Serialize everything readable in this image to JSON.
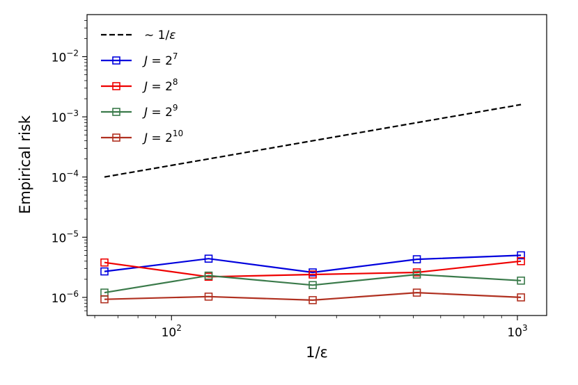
{
  "chart_data": {
    "type": "line",
    "x_scale": "log",
    "y_scale": "log",
    "xlabel": "1/ε",
    "ylabel": "Empirical risk",
    "xlim": [
      57,
      1215
    ],
    "ylim": [
      5e-07,
      0.05
    ],
    "x_ticks": [
      {
        "value": 100,
        "base": "10",
        "exp": "2"
      },
      {
        "value": 1000,
        "base": "10",
        "exp": "3"
      }
    ],
    "y_ticks": [
      {
        "value": 1e-06,
        "base": "10",
        "exp": "−6"
      },
      {
        "value": 1e-05,
        "base": "10",
        "exp": "−5"
      },
      {
        "value": 0.0001,
        "base": "10",
        "exp": "−4"
      },
      {
        "value": 0.001,
        "base": "10",
        "exp": "−3"
      },
      {
        "value": 0.01,
        "base": "10",
        "exp": "−2"
      }
    ],
    "x": [
      64,
      128,
      256,
      512,
      1024
    ],
    "series": [
      {
        "name": "∼ 1/ε",
        "label_prefix": "∼ 1/",
        "label_var": "ε",
        "label_sup": "",
        "color": "#000000",
        "dashed": true,
        "marker": false,
        "values": [
          0.0001,
          0.0002,
          0.0004,
          0.0008,
          0.0016
        ]
      },
      {
        "name": "J = 2^7",
        "label_prefix": "J = 2",
        "label_var": "",
        "label_sup": "7",
        "color": "#0000dd",
        "dashed": false,
        "marker": true,
        "values": [
          2.7e-06,
          4.4e-06,
          2.6e-06,
          4.3e-06,
          5e-06
        ]
      },
      {
        "name": "J = 2^8",
        "label_prefix": "J = 2",
        "label_var": "",
        "label_sup": "8",
        "color": "#ee0000",
        "dashed": false,
        "marker": true,
        "values": [
          3.8e-06,
          2.2e-06,
          2.4e-06,
          2.6e-06,
          4e-06
        ]
      },
      {
        "name": "J = 2^9",
        "label_prefix": "J = 2",
        "label_var": "",
        "label_sup": "9",
        "color": "#3a7a4a",
        "dashed": false,
        "marker": true,
        "values": [
          1.2e-06,
          2.3e-06,
          1.6e-06,
          2.4e-06,
          1.9e-06
        ]
      },
      {
        "name": "J = 2^10",
        "label_prefix": "J = 2",
        "label_var": "",
        "label_sup": "10",
        "color": "#b03020",
        "dashed": false,
        "marker": true,
        "values": [
          9.3e-07,
          1.03e-06,
          9e-07,
          1.2e-06,
          1e-06
        ]
      }
    ],
    "legend_position": "top-left",
    "grid": false
  }
}
